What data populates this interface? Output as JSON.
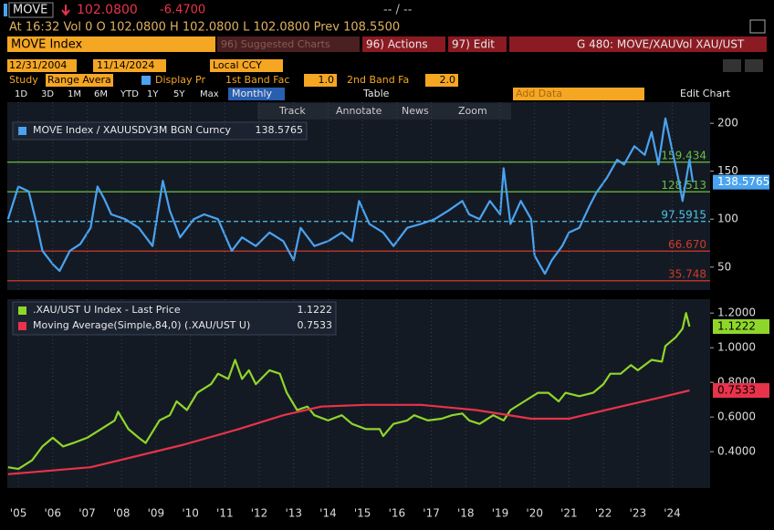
{
  "terminal": {
    "ticker": "MOVE",
    "last": "102.0800",
    "change": "-6.4700",
    "bidask": "-- / --",
    "quote": "At 16:32 Vol 0 O 102.0800 H 102.0800 L 102.0800 Prev 108.5500",
    "security": "MOVE Index",
    "suggested": "96) Suggested Charts",
    "actions": "96) Actions",
    "edit": "97) Edit",
    "chart_name": "G 480: MOVE/XAUVol XAU/UST",
    "start_date": "12/31/2004",
    "end_date": "11/14/2024",
    "currency": "Local CCY",
    "study_label": "Study",
    "study": "Range Avera",
    "display": "Display Pr",
    "band1_label": "1st Band Fac",
    "band1": "1.0",
    "band2_label": "2nd Band Fa",
    "band2": "2.0",
    "periods": [
      "1D",
      "3D",
      "1M",
      "6M",
      "YTD",
      "1Y",
      "5Y",
      "Max"
    ],
    "frequency": "Monthly",
    "table": "Table",
    "add_data": "Add Data",
    "edit_chart": "Edit Chart",
    "tools": [
      "Track",
      "Annotate",
      "News",
      "Zoom"
    ]
  },
  "chart_data": [
    {
      "type": "line",
      "xlim": [
        2004.68,
        2025.1
      ],
      "ylim": [
        26,
        222
      ],
      "yticks": [
        50,
        100,
        150,
        200
      ],
      "hlines": [
        {
          "value": 159.434,
          "color": "#6cbf3c"
        },
        {
          "value": 128.513,
          "color": "#6cbf3c"
        },
        {
          "value": 97.5915,
          "color": "#4fc3e8"
        },
        {
          "value": 66.67,
          "label": "66.670",
          "color": "#d0392b"
        },
        {
          "value": 35.748,
          "color": "#d0392b"
        }
      ],
      "series": [
        {
          "name": "MOVE Index / XAUUSDV3M BGN Curncy",
          "color": "#4aa3f0",
          "x": [
            2004.7,
            2005.0,
            2005.3,
            2005.5,
            2005.7,
            2006.0,
            2006.2,
            2006.5,
            2006.8,
            2007.1,
            2007.3,
            2007.5,
            2007.7,
            2008.1,
            2008.5,
            2008.9,
            2009.2,
            2009.4,
            2009.7,
            2010.1,
            2010.4,
            2010.8,
            2011.2,
            2011.5,
            2011.9,
            2012.3,
            2012.7,
            2013.0,
            2013.2,
            2013.6,
            2014.0,
            2014.4,
            2014.7,
            2014.9,
            2015.2,
            2015.6,
            2015.9,
            2016.3,
            2016.7,
            2017.1,
            2017.5,
            2017.9,
            2018.1,
            2018.4,
            2018.7,
            2019.0,
            2019.1,
            2019.3,
            2019.6,
            2019.9,
            2020.0,
            2020.3,
            2020.5,
            2020.8,
            2021.0,
            2021.3,
            2021.6,
            2021.8,
            2022.1,
            2022.4,
            2022.6,
            2022.9,
            2023.2,
            2023.4,
            2023.6,
            2023.8,
            2024.0,
            2024.2,
            2024.3,
            2024.5,
            2024.6
          ],
          "values": [
            100,
            134,
            129,
            100,
            67,
            53,
            46,
            67,
            74,
            91,
            134,
            121,
            105,
            100,
            91,
            72,
            140,
            109,
            81,
            100,
            105,
            100,
            67,
            81,
            72,
            86,
            77,
            57,
            91,
            72,
            77,
            86,
            77,
            119,
            95,
            86,
            72,
            91,
            95,
            100,
            109,
            119,
            105,
            100,
            119,
            105,
            153,
            95,
            119,
            100,
            62,
            43,
            57,
            72,
            86,
            91,
            114,
            128,
            143,
            162,
            157,
            176,
            167,
            191,
            157,
            205,
            172,
            138,
            119,
            162,
            138.5765
          ]
        }
      ]
    },
    {
      "type": "line",
      "xlim": [
        2004.68,
        2025.1
      ],
      "ylim": [
        0.19,
        1.28
      ],
      "yticks": [
        {
          "value": 0.4,
          "label": "0.4000"
        },
        {
          "value": 0.6,
          "label": "0.6000"
        },
        {
          "value": 0.8,
          "label": "0.8000"
        },
        {
          "value": 1.0,
          "label": "1.0000"
        },
        {
          "value": 1.2,
          "label": "1.2000"
        }
      ],
      "xticks": [
        {
          "value": 2005,
          "label": "'05"
        },
        {
          "value": 2006,
          "label": "'06"
        },
        {
          "value": 2007,
          "label": "'07"
        },
        {
          "value": 2008,
          "label": "'08"
        },
        {
          "value": 2009,
          "label": "'09"
        },
        {
          "value": 2010,
          "label": "'10"
        },
        {
          "value": 2011,
          "label": "'11"
        },
        {
          "value": 2012,
          "label": "'12"
        },
        {
          "value": 2013,
          "label": "'13"
        },
        {
          "value": 2014,
          "label": "'14"
        },
        {
          "value": 2015,
          "label": "'15"
        },
        {
          "value": 2016,
          "label": "'16"
        },
        {
          "value": 2017,
          "label": "'17"
        },
        {
          "value": 2018,
          "label": "'18"
        },
        {
          "value": 2019,
          "label": "'19"
        },
        {
          "value": 2020,
          "label": "'20"
        },
        {
          "value": 2021,
          "label": "'21"
        },
        {
          "value": 2022,
          "label": "'22"
        },
        {
          "value": 2023,
          "label": "'23"
        },
        {
          "value": 2024,
          "label": "'24"
        }
      ],
      "series": [
        {
          "name": ".XAU/UST U Index - Last Price",
          "color": "#8fd62b",
          "x": [
            2004.7,
            2005.0,
            2005.4,
            2005.7,
            2006.0,
            2006.3,
            2006.6,
            2007.0,
            2007.4,
            2007.8,
            2007.9,
            2008.2,
            2008.5,
            2008.7,
            2009.1,
            2009.4,
            2009.6,
            2009.9,
            2010.2,
            2010.6,
            2010.8,
            2011.1,
            2011.3,
            2011.5,
            2011.7,
            2011.9,
            2012.3,
            2012.6,
            2012.8,
            2013.1,
            2013.4,
            2013.6,
            2014.0,
            2014.4,
            2014.7,
            2015.1,
            2015.5,
            2015.6,
            2015.9,
            2016.3,
            2016.5,
            2016.9,
            2017.3,
            2017.6,
            2017.9,
            2018.1,
            2018.4,
            2018.8,
            2019.1,
            2019.3,
            2019.7,
            2020.1,
            2020.4,
            2020.7,
            2020.9,
            2021.3,
            2021.7,
            2022.0,
            2022.2,
            2022.5,
            2022.8,
            2023.0,
            2023.4,
            2023.7,
            2023.8,
            2024.1,
            2024.3,
            2024.4,
            2024.5
          ],
          "values": [
            0.31,
            0.3,
            0.35,
            0.43,
            0.48,
            0.43,
            0.45,
            0.48,
            0.53,
            0.58,
            0.63,
            0.53,
            0.48,
            0.45,
            0.58,
            0.61,
            0.69,
            0.64,
            0.74,
            0.79,
            0.85,
            0.82,
            0.93,
            0.82,
            0.87,
            0.79,
            0.87,
            0.85,
            0.74,
            0.64,
            0.66,
            0.61,
            0.58,
            0.61,
            0.56,
            0.53,
            0.53,
            0.49,
            0.56,
            0.58,
            0.61,
            0.58,
            0.59,
            0.61,
            0.62,
            0.58,
            0.56,
            0.61,
            0.58,
            0.64,
            0.69,
            0.74,
            0.74,
            0.69,
            0.74,
            0.72,
            0.74,
            0.79,
            0.85,
            0.85,
            0.9,
            0.87,
            0.93,
            0.92,
            1.01,
            1.06,
            1.11,
            1.2,
            1.1222
          ]
        },
        {
          "name": "Moving Average(Simple,84,0) (.XAU/UST U)",
          "color": "#e8334a",
          "x": [
            2004.7,
            2007.1,
            2009.8,
            2011.4,
            2012.7,
            2013.8,
            2015.1,
            2016.7,
            2018.3,
            2019.9,
            2021.0,
            2022.5,
            2023.6,
            2024.5
          ],
          "values": [
            0.27,
            0.31,
            0.44,
            0.53,
            0.61,
            0.66,
            0.67,
            0.67,
            0.64,
            0.59,
            0.59,
            0.66,
            0.71,
            0.7533
          ]
        }
      ]
    }
  ]
}
